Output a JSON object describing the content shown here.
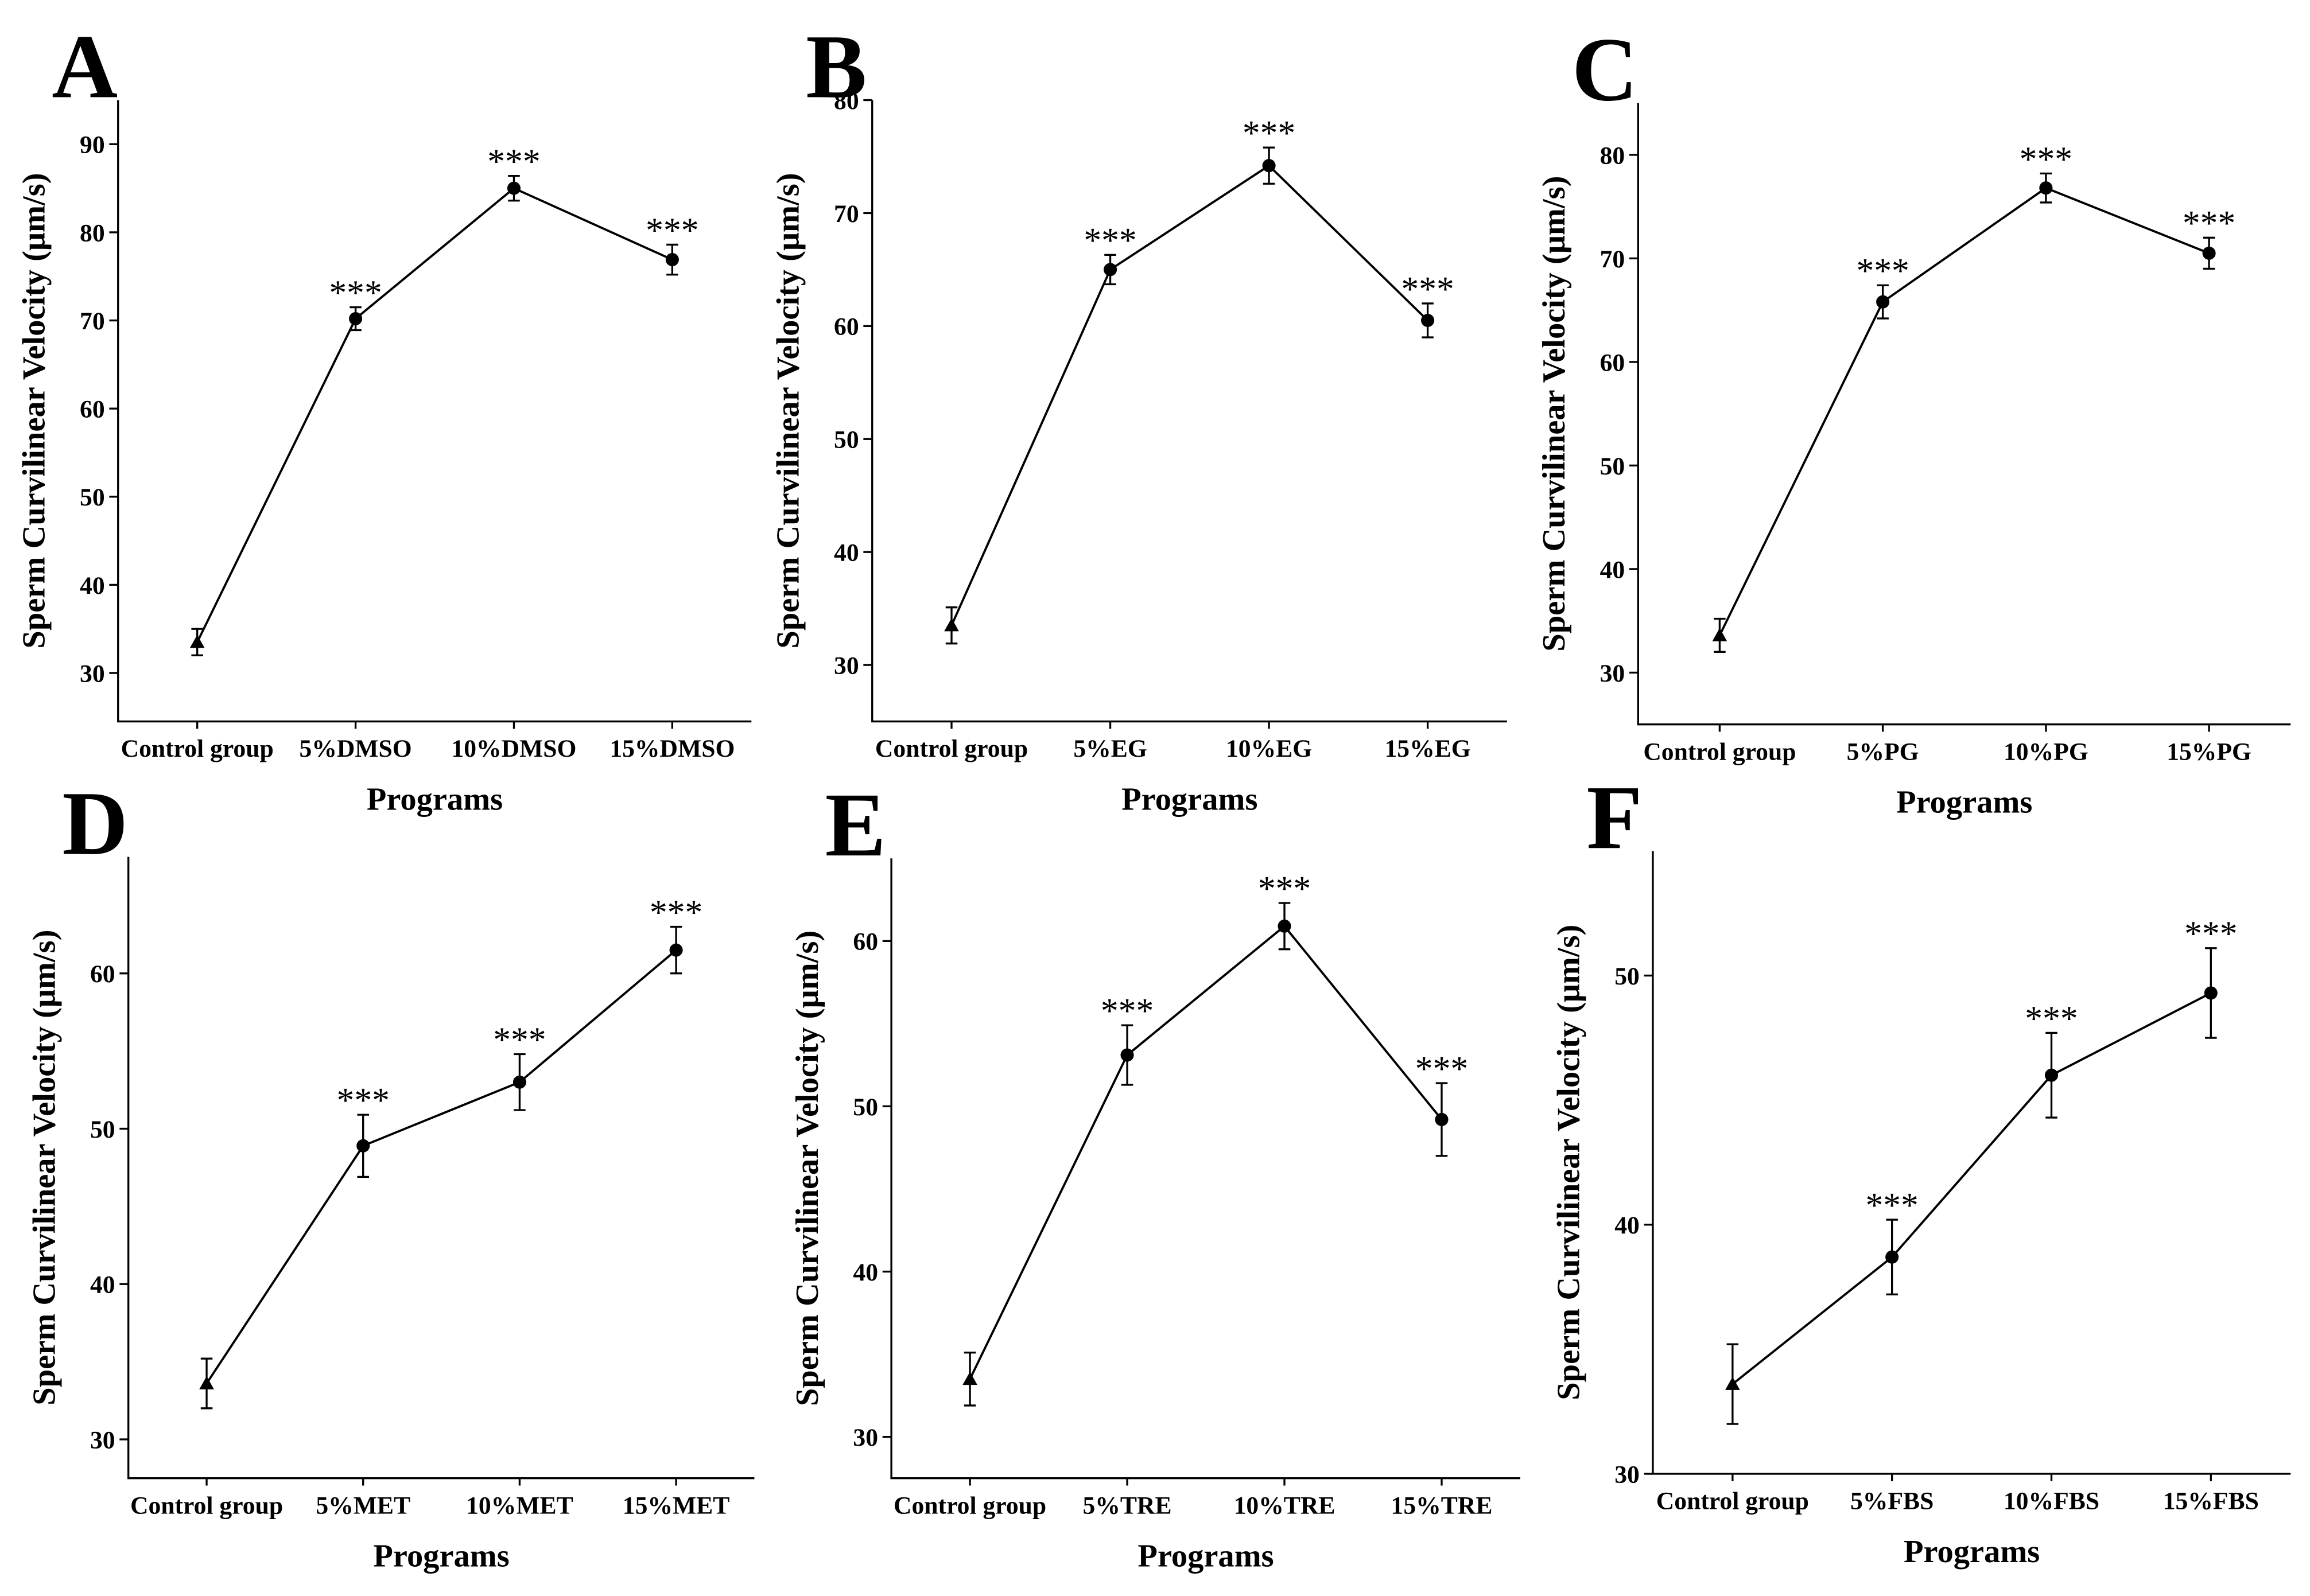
{
  "chart_data": [
    {
      "type": "line",
      "panel": "A",
      "x_label": "Programs",
      "y_label": "Sperm Curvilinear Velocity (μm/s)",
      "categories": [
        "Control group",
        "5%DMSO",
        "10%DMSO",
        "15%DMSO"
      ],
      "values": [
        33.5,
        70.2,
        85,
        76.9
      ],
      "errors": [
        1.5,
        1.3,
        1.4,
        1.7
      ],
      "annotations": [
        null,
        "***",
        "***",
        "***"
      ],
      "markers": [
        "triangle",
        "circle",
        "circle",
        "circle"
      ],
      "color": "#000000",
      "ylim": [
        24.5,
        95
      ],
      "yticks": [
        30,
        40,
        50,
        60,
        70,
        80,
        90
      ]
    },
    {
      "type": "line",
      "panel": "B",
      "x_label": "Programs",
      "y_label": "Sperm Curvilinear Velocity (μm/s)",
      "categories": [
        "Control group",
        "5%EG",
        "10%EG",
        "15%EG"
      ],
      "values": [
        33.5,
        65,
        74.2,
        60.5
      ],
      "errors": [
        1.6,
        1.3,
        1.6,
        1.5
      ],
      "annotations": [
        null,
        "***",
        "***",
        "***"
      ],
      "markers": [
        "triangle",
        "circle",
        "circle",
        "circle"
      ],
      "color": "#000000",
      "ylim": [
        25,
        80
      ],
      "yticks": [
        30,
        40,
        50,
        60,
        70,
        80
      ]
    },
    {
      "type": "line",
      "panel": "C",
      "x_label": "Programs",
      "y_label": "Sperm Curvilinear Velocity (μm/s)",
      "categories": [
        "Control group",
        "5%PG",
        "10%PG",
        "15%PG"
      ],
      "values": [
        33.6,
        65.8,
        76.8,
        70.5
      ],
      "errors": [
        1.6,
        1.6,
        1.4,
        1.5
      ],
      "annotations": [
        null,
        "***",
        "***",
        "***"
      ],
      "markers": [
        "triangle",
        "circle",
        "circle",
        "circle"
      ],
      "color": "#000000",
      "ylim": [
        25,
        85
      ],
      "yticks": [
        30,
        40,
        50,
        60,
        70,
        80
      ]
    },
    {
      "type": "line",
      "panel": "D",
      "x_label": "Programs",
      "y_label": "Sperm Curvilinear Velocity (μm/s)",
      "categories": [
        "Control group",
        "5%MET",
        "10%MET",
        "15%MET"
      ],
      "values": [
        33.6,
        48.9,
        53,
        61.5
      ],
      "errors": [
        1.6,
        2,
        1.8,
        1.5
      ],
      "annotations": [
        null,
        "***",
        "***",
        "***"
      ],
      "markers": [
        "triangle",
        "circle",
        "circle",
        "circle"
      ],
      "color": "#000000",
      "ylim": [
        27.5,
        67.5
      ],
      "yticks": [
        30,
        40,
        50,
        60
      ]
    },
    {
      "type": "line",
      "panel": "E",
      "x_label": "Programs",
      "y_label": "Sperm Curvilinear Velocity (μm/s)",
      "categories": [
        "Control group",
        "5%TRE",
        "10%TRE",
        "15%TRE"
      ],
      "values": [
        33.5,
        53.1,
        60.9,
        49.2
      ],
      "errors": [
        1.6,
        1.8,
        1.4,
        2.2
      ],
      "annotations": [
        null,
        "***",
        "***",
        "***"
      ],
      "markers": [
        "triangle",
        "circle",
        "circle",
        "circle"
      ],
      "color": "#000000",
      "ylim": [
        27.5,
        65
      ],
      "yticks": [
        30,
        40,
        50,
        60
      ]
    },
    {
      "type": "line",
      "panel": "F",
      "x_label": "Programs",
      "y_label": "Sperm Curvilinear Velocity (μm/s)",
      "categories": [
        "Control group",
        "5%FBS",
        "10%FBS",
        "15%FBS"
      ],
      "values": [
        33.6,
        38.7,
        46,
        49.3
      ],
      "errors": [
        1.6,
        1.5,
        1.7,
        1.8
      ],
      "annotations": [
        null,
        "***",
        "***",
        "***"
      ],
      "markers": [
        "triangle",
        "circle",
        "circle",
        "circle"
      ],
      "color": "#000000",
      "ylim": [
        30,
        55
      ],
      "yticks": [
        30,
        40,
        50
      ]
    }
  ]
}
